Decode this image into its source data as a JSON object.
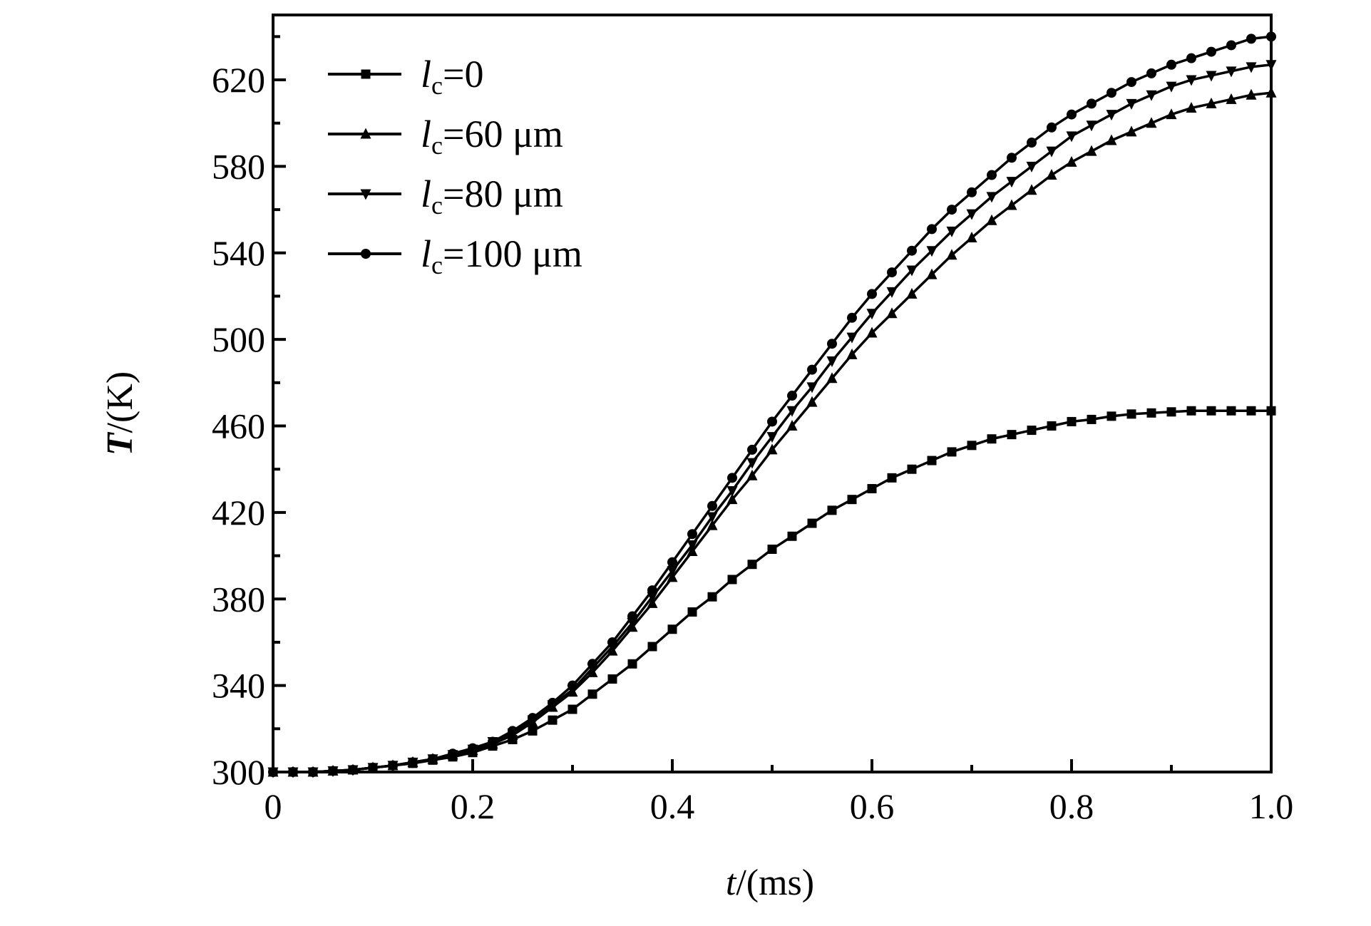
{
  "chart_data": {
    "type": "line",
    "xlabel": "t/(ms)",
    "xlabel_italic": "t",
    "xlabel_unit": "/(ms)",
    "ylabel": "T/(K)",
    "ylabel_italic": "T",
    "ylabel_unit": "/(K)",
    "xlim": [
      0,
      1.0
    ],
    "ylim": [
      300,
      650
    ],
    "x_ticks": [
      "0",
      "0.2",
      "0.4",
      "0.6",
      "0.8",
      "1.0"
    ],
    "y_ticks": [
      "300",
      "340",
      "380",
      "420",
      "460",
      "500",
      "540",
      "580",
      "620"
    ],
    "grid": false,
    "legend_position": "top-left",
    "color": "#000000",
    "x": [
      0,
      0.02,
      0.04,
      0.06,
      0.08,
      0.1,
      0.12,
      0.14,
      0.16,
      0.18,
      0.2,
      0.22,
      0.24,
      0.26,
      0.28,
      0.3,
      0.32,
      0.34,
      0.36,
      0.38,
      0.4,
      0.42,
      0.44,
      0.46,
      0.48,
      0.5,
      0.52,
      0.54,
      0.56,
      0.58,
      0.6,
      0.62,
      0.64,
      0.66,
      0.68,
      0.7,
      0.72,
      0.74,
      0.76,
      0.78,
      0.8,
      0.82,
      0.84,
      0.86,
      0.88,
      0.9,
      0.92,
      0.94,
      0.96,
      0.98,
      1.0
    ],
    "series": [
      {
        "name": "l_c=0",
        "label_main": "l",
        "label_sub": "c",
        "label_rest": "=0",
        "marker": "square",
        "values": [
          300,
          300,
          300,
          300.5,
          301,
          302,
          303,
          304,
          305.5,
          307,
          309,
          312,
          315,
          319,
          324,
          329,
          336,
          343,
          350,
          358,
          366,
          374,
          381,
          389,
          396,
          403,
          409,
          415,
          421,
          426,
          431,
          436,
          440,
          444,
          448,
          451,
          454,
          456,
          458,
          460,
          462,
          463,
          464.5,
          465.5,
          466,
          466.5,
          467,
          467,
          467,
          467,
          467
        ]
      },
      {
        "name": "l_c=60 μm",
        "label_main": "l",
        "label_sub": "c",
        "label_rest": "=60 μm",
        "marker": "triangle-up",
        "values": [
          300,
          300,
          300,
          300.5,
          301,
          302,
          303,
          304.5,
          306,
          308,
          310,
          313,
          317,
          323,
          330,
          337,
          346,
          356,
          367,
          378,
          390,
          402,
          414,
          426,
          437,
          449,
          460,
          471,
          482,
          493,
          503,
          512,
          521,
          530,
          539,
          547,
          555,
          562,
          569,
          576,
          582,
          587,
          592,
          596,
          600,
          604,
          607,
          609,
          611,
          613,
          614
        ]
      },
      {
        "name": "l_c=80 μm",
        "label_main": "l",
        "label_sub": "c",
        "label_rest": "=80 μm",
        "marker": "triangle-down",
        "values": [
          300,
          300,
          300,
          300.5,
          301,
          302,
          303,
          304.5,
          306,
          308,
          310.5,
          314,
          318,
          324,
          331,
          338,
          348,
          358,
          369,
          381,
          393,
          405,
          418,
          430,
          443,
          455,
          467,
          478,
          490,
          501,
          512,
          522,
          532,
          541,
          550,
          558,
          566,
          573,
          580,
          587,
          594,
          599,
          604,
          609,
          613,
          617,
          620,
          622,
          624,
          626,
          627
        ]
      },
      {
        "name": "l_c=100 μm",
        "label_main": "l",
        "label_sub": "c",
        "label_rest": "=100 μm",
        "marker": "circle",
        "values": [
          300,
          300,
          300,
          300.5,
          301,
          302,
          303,
          304.5,
          306,
          308.5,
          311,
          314,
          319,
          325,
          332,
          340,
          350,
          360,
          372,
          384,
          397,
          410,
          423,
          436,
          449,
          462,
          474,
          486,
          498,
          510,
          521,
          531,
          541,
          551,
          560,
          568,
          576,
          584,
          591,
          598,
          604,
          609,
          614,
          619,
          623,
          627,
          630,
          633,
          636,
          639,
          640
        ]
      }
    ]
  }
}
